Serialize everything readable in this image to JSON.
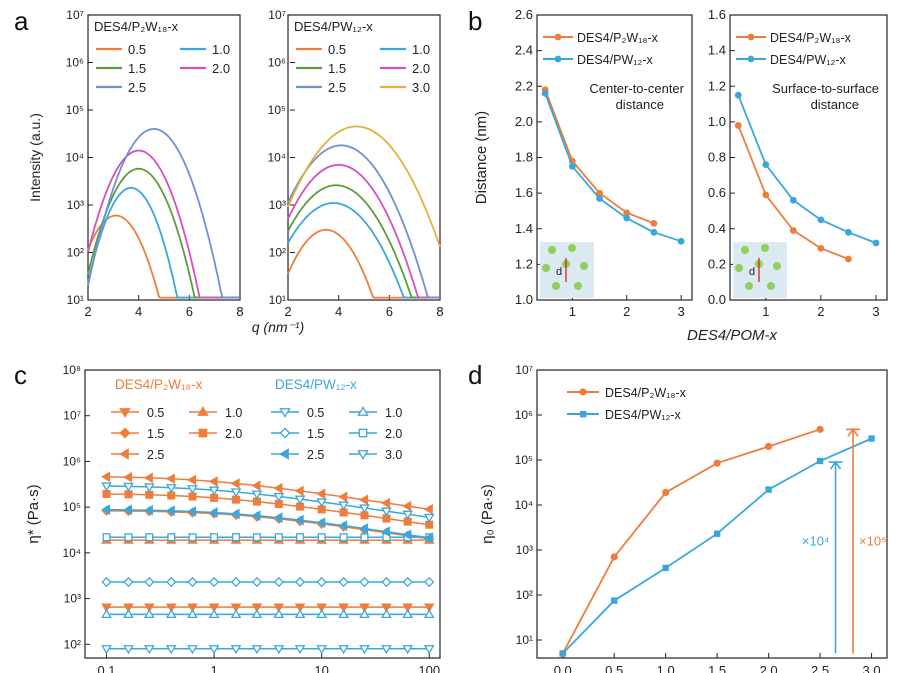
{
  "colors": {
    "orange": "#ee7d3b",
    "blue": "#3aa7dc",
    "green": "#5a9e3a",
    "pink": "#d84fbf",
    "violet": "#6f8fd6",
    "gold": "#e2b23c",
    "inset_bg": "#dbe9f2",
    "dot": "#8fcf5a",
    "axis": "#222222"
  },
  "chart_data": [
    {
      "panel": "a",
      "type": "line",
      "title": "DES4/P₂W₁₈-x",
      "xlabel": "",
      "ylabel": "Intensity (a.u.)",
      "xlim": [
        2,
        8
      ],
      "ylim_log10": [
        1,
        7
      ],
      "xticks": [
        "2",
        "4",
        "6",
        "8"
      ],
      "yticks": [
        "10¹",
        "10²",
        "10³",
        "10⁴",
        "10⁵",
        "10⁶",
        "10⁷"
      ],
      "legend": [
        {
          "label": "0.5",
          "color": "orange"
        },
        {
          "label": "1.0",
          "color": "blue"
        },
        {
          "label": "1.5",
          "color": "green"
        },
        {
          "label": "2.0",
          "color": "pink"
        },
        {
          "label": "2.5",
          "color": "violet"
        }
      ],
      "series": [
        {
          "name": "0.5",
          "color": "orange",
          "base": 600,
          "peak": 3.1,
          "width": 1.5,
          "slope": 0.95
        },
        {
          "name": "1.0",
          "color": "blue",
          "base": 2300,
          "peak": 3.7,
          "width": 1.1,
          "slope": 0.6
        },
        {
          "name": "1.5",
          "color": "green",
          "base": 5800,
          "peak": 4.0,
          "width": 1.2,
          "slope": 0.57
        },
        {
          "name": "2.0",
          "color": "pink",
          "base": 14000,
          "peak": 4.0,
          "width": 1.2,
          "slope": 0.55
        },
        {
          "name": "2.5",
          "color": "violet",
          "base": 40000,
          "peak": 4.6,
          "width": 1.3,
          "slope": 0.59
        }
      ]
    },
    {
      "panel": "a",
      "type": "line",
      "title": "DES4/PW₁₂-x",
      "xlabel": "q (nm⁻¹)",
      "xlim": [
        2,
        8
      ],
      "ylim_log10": [
        1,
        7
      ],
      "xticks": [
        "2",
        "4",
        "6",
        "8"
      ],
      "yticks": [
        "10¹",
        "10²",
        "10³",
        "10⁴",
        "10⁵",
        "10⁶",
        "10⁷"
      ],
      "legend": [
        {
          "label": "0.5",
          "color": "orange"
        },
        {
          "label": "1.0",
          "color": "blue"
        },
        {
          "label": "1.5",
          "color": "green"
        },
        {
          "label": "2.0",
          "color": "pink"
        },
        {
          "label": "2.5",
          "color": "violet"
        },
        {
          "label": "3.0",
          "color": "gold"
        }
      ],
      "series": [
        {
          "name": "0.5",
          "color": "orange",
          "base": 300,
          "peak": 3.5,
          "width": 1.7,
          "slope": 0.85
        },
        {
          "name": "1.0",
          "color": "blue",
          "base": 1100,
          "peak": 3.8,
          "width": 1.8,
          "slope": 0.6
        },
        {
          "name": "1.5",
          "color": "green",
          "base": 2600,
          "peak": 3.9,
          "width": 1.7,
          "slope": 0.55
        },
        {
          "name": "2.0",
          "color": "pink",
          "base": 7000,
          "peak": 4.0,
          "width": 1.6,
          "slope": 0.52
        },
        {
          "name": "2.5",
          "color": "violet",
          "base": 18000,
          "peak": 4.1,
          "width": 1.6,
          "slope": 0.5
        },
        {
          "name": "3.0",
          "color": "gold",
          "base": 45000,
          "peak": 4.7,
          "width": 1.7,
          "slope": 0.48
        }
      ]
    },
    {
      "panel": "b",
      "type": "line",
      "title": "Center-to-center distance",
      "ylabel": "Distance (nm)",
      "xlabel": "DES4/POM-x",
      "xlim": [
        0.35,
        3.2
      ],
      "ylim": [
        1.0,
        2.6
      ],
      "xticks": [
        "1",
        "2",
        "3"
      ],
      "yticks": [
        "1.0",
        "1.2",
        "1.4",
        "1.6",
        "1.8",
        "2.0",
        "2.2",
        "2.4",
        "2.6"
      ],
      "legend": [
        {
          "label": "DES4/P₂W₁₈-x",
          "color": "orange"
        },
        {
          "label": "DES4/PW₁₂-x",
          "color": "blue"
        }
      ],
      "inset_label": "d",
      "series": [
        {
          "name": "DES4/P₂W₁₈-x",
          "color": "orange",
          "x": [
            0.5,
            1.0,
            1.5,
            2.0,
            2.5
          ],
          "y": [
            2.18,
            1.78,
            1.6,
            1.49,
            1.43
          ]
        },
        {
          "name": "DES4/PW₁₂-x",
          "color": "blue",
          "x": [
            0.5,
            1.0,
            1.5,
            2.0,
            2.5,
            3.0
          ],
          "y": [
            2.16,
            1.75,
            1.57,
            1.46,
            1.38,
            1.33
          ]
        }
      ]
    },
    {
      "panel": "b",
      "type": "line",
      "title": "Surface-to-surface distance",
      "xlim": [
        0.35,
        3.2
      ],
      "ylim": [
        0.0,
        1.6
      ],
      "xticks": [
        "1",
        "2",
        "3"
      ],
      "yticks": [
        "0.0",
        "0.2",
        "0.4",
        "0.6",
        "0.8",
        "1.0",
        "1.2",
        "1.4",
        "1.6"
      ],
      "legend": [
        {
          "label": "DES4/P₂W₁₈-x",
          "color": "orange"
        },
        {
          "label": "DES4/PW₁₂-x",
          "color": "blue"
        }
      ],
      "inset_label": "d",
      "series": [
        {
          "name": "DES4/P₂W₁₈-x",
          "color": "orange",
          "x": [
            0.5,
            1.0,
            1.5,
            2.0,
            2.5
          ],
          "y": [
            0.98,
            0.59,
            0.39,
            0.29,
            0.23
          ]
        },
        {
          "name": "DES4/PW₁₂-x",
          "color": "blue",
          "x": [
            0.5,
            1.0,
            1.5,
            2.0,
            2.5,
            3.0
          ],
          "y": [
            1.15,
            0.76,
            0.56,
            0.45,
            0.38,
            0.32
          ]
        }
      ]
    },
    {
      "panel": "c",
      "type": "line",
      "ylabel": "η* (Pa·s)",
      "xlim_log10": [
        -1.2,
        2.1
      ],
      "ylim_log10": [
        1.7,
        8
      ],
      "xticks": [
        "0.1",
        "1",
        "10",
        "100"
      ],
      "xtick_values": [
        0.1,
        1,
        10,
        100
      ],
      "yticks": [
        "10²",
        "10³",
        "10⁴",
        "10⁵",
        "10⁶",
        "10⁷",
        "10⁸"
      ],
      "legend_titles": [
        "DES4/P₂W₁₈-x",
        "DES4/PW₁₂-x"
      ],
      "legend": [
        {
          "group": 0,
          "label": "0.5",
          "color": "orange",
          "marker": "tri-down"
        },
        {
          "group": 0,
          "label": "1.0",
          "color": "orange",
          "marker": "tri-up"
        },
        {
          "group": 0,
          "label": "1.5",
          "color": "orange",
          "marker": "diamond"
        },
        {
          "group": 0,
          "label": "2.0",
          "color": "orange",
          "marker": "square"
        },
        {
          "group": 0,
          "label": "2.5",
          "color": "orange",
          "marker": "tri-left"
        },
        {
          "group": 1,
          "label": "0.5",
          "color": "blue",
          "marker": "tri-down-open"
        },
        {
          "group": 1,
          "label": "1.0",
          "color": "blue",
          "marker": "tri-up-open"
        },
        {
          "group": 1,
          "label": "1.5",
          "color": "blue",
          "marker": "diamond-open"
        },
        {
          "group": 1,
          "label": "2.0",
          "color": "blue",
          "marker": "square-open"
        },
        {
          "group": 1,
          "label": "2.5",
          "color": "blue",
          "marker": "tri-left"
        },
        {
          "group": 1,
          "label": "3.0",
          "color": "blue",
          "marker": "tri-down-open"
        }
      ],
      "x": [
        0.1,
        0.16,
        0.25,
        0.4,
        0.63,
        1,
        1.6,
        2.5,
        4,
        6.3,
        10,
        16,
        25,
        40,
        63,
        100
      ],
      "series": [
        {
          "name": "P2W18 0.5",
          "color": "orange",
          "marker": "tri-down",
          "eta0": 650,
          "tau": 0
        },
        {
          "name": "P2W18 1.0",
          "color": "orange",
          "marker": "tri-up",
          "eta0": 19000,
          "tau": 0
        },
        {
          "name": "P2W18 1.5",
          "color": "orange",
          "marker": "diamond",
          "eta0": 85000,
          "tau": 0.006
        },
        {
          "name": "P2W18 2.0",
          "color": "orange",
          "marker": "square",
          "eta0": 200000,
          "tau": 0.009
        },
        {
          "name": "P2W18 2.5",
          "color": "orange",
          "marker": "tri-left",
          "eta0": 480000,
          "tau": 0.012
        },
        {
          "name": "PW12 0.5",
          "color": "blue",
          "marker": "tri-down-open",
          "eta0": 80,
          "tau": 0
        },
        {
          "name": "PW12 1.0",
          "color": "blue",
          "marker": "tri-up-open",
          "eta0": 450,
          "tau": 0
        },
        {
          "name": "PW12 1.5",
          "color": "blue",
          "marker": "diamond-open",
          "eta0": 2300,
          "tau": 0
        },
        {
          "name": "PW12 2.0",
          "color": "blue",
          "marker": "square-open",
          "eta0": 22000,
          "tau": 0
        },
        {
          "name": "PW12 2.5",
          "color": "blue",
          "marker": "tri-left",
          "eta0": 90000,
          "tau": 0.006
        },
        {
          "name": "PW12 3.0",
          "color": "blue",
          "marker": "tri-down-open",
          "eta0": 300000,
          "tau": 0.01
        }
      ]
    },
    {
      "panel": "d",
      "type": "line",
      "ylabel": "η₀ (Pa·s)",
      "xlim": [
        -0.25,
        3.15
      ],
      "ylim_log10": [
        0.6,
        7
      ],
      "xticks": [
        "0.0",
        "0.5",
        "1.0",
        "1.5",
        "2.0",
        "2.5",
        "3.0"
      ],
      "yticks": [
        "10¹",
        "10²",
        "10³",
        "10⁴",
        "10⁵",
        "10⁶",
        "10⁷"
      ],
      "legend": [
        {
          "label": "DES4/P₂W₁₈-x",
          "color": "orange"
        },
        {
          "label": "DES4/PW₁₂-x",
          "color": "blue"
        }
      ],
      "annotations": [
        {
          "text": "×10⁴",
          "color": "blue",
          "x": 2.65,
          "from": 5,
          "to": 90000
        },
        {
          "text": "×10⁵",
          "color": "orange",
          "x": 2.82,
          "from": 5,
          "to": 480000
        }
      ],
      "series": [
        {
          "name": "DES4/P₂W₁₈-x",
          "color": "orange",
          "x": [
            0.0,
            0.5,
            1.0,
            1.5,
            2.0,
            2.5
          ],
          "y": [
            5,
            700,
            19000,
            85000,
            200000,
            480000
          ]
        },
        {
          "name": "DES4/PW₁₂-x",
          "color": "blue",
          "x": [
            0.0,
            0.5,
            1.0,
            1.5,
            2.0,
            2.5,
            3.0
          ],
          "y": [
            5,
            75,
            400,
            2300,
            22000,
            95000,
            300000
          ]
        }
      ]
    }
  ],
  "panel_letters": [
    "a",
    "b",
    "c",
    "d"
  ]
}
